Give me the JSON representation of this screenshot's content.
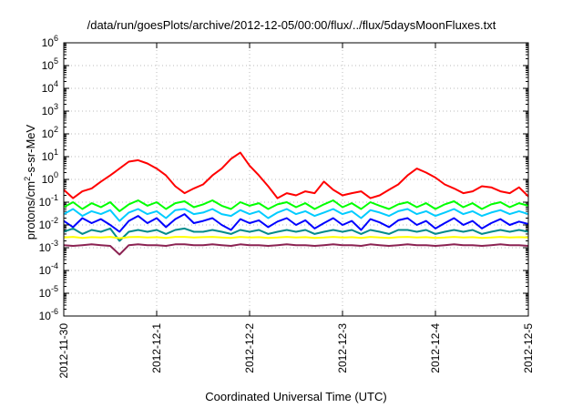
{
  "chart_data": {
    "type": "line",
    "title": "/data/run/goesPlots/archive/2012-12-05/00:00/flux/../flux/5daysMoonFluxes.txt",
    "xlabel": "Coordinated Universal Time (UTC)",
    "ylabel_parts": [
      "protons/cm",
      "2",
      "-s-sr-MeV"
    ],
    "y_scale": "log",
    "ylim": [
      1e-06,
      1000000.0
    ],
    "xlim": [
      "2012-11-30",
      "2012-12-05"
    ],
    "x_ticks": [
      "2012-11-30",
      "2012-12-1",
      "2012-12-2",
      "2012-12-3",
      "2012-12-4",
      "2012-12-5"
    ],
    "y_ticks": [
      {
        "value": 1e-06,
        "base": "10",
        "exp": "-6"
      },
      {
        "value": 1e-05,
        "base": "10",
        "exp": "-5"
      },
      {
        "value": 0.0001,
        "base": "10",
        "exp": "-4"
      },
      {
        "value": 0.001,
        "base": "10",
        "exp": "-3"
      },
      {
        "value": 0.01,
        "base": "10",
        "exp": "-2"
      },
      {
        "value": 0.1,
        "base": "10",
        "exp": "-1"
      },
      {
        "value": 1,
        "base": "10",
        "exp": "0"
      },
      {
        "value": 10,
        "base": "10",
        "exp": "1"
      },
      {
        "value": 100,
        "base": "10",
        "exp": "2"
      },
      {
        "value": 1000,
        "base": "10",
        "exp": "3"
      },
      {
        "value": 10000,
        "base": "10",
        "exp": "4"
      },
      {
        "value": 100000,
        "base": "10",
        "exp": "5"
      },
      {
        "value": 1000000,
        "base": "10",
        "exp": "6"
      }
    ],
    "grid": true,
    "series": [
      {
        "color": "#ff0000",
        "x": [
          0,
          0.1,
          0.2,
          0.3,
          0.4,
          0.5,
          0.6,
          0.7,
          0.8,
          0.9,
          1.0,
          1.1,
          1.2,
          1.3,
          1.4,
          1.5,
          1.6,
          1.7,
          1.8,
          1.9,
          2.0,
          2.1,
          2.2,
          2.3,
          2.4,
          2.5,
          2.6,
          2.7,
          2.8,
          2.9,
          3.0,
          3.1,
          3.2,
          3.3,
          3.4,
          3.5,
          3.6,
          3.7,
          3.8,
          3.9,
          4.0,
          4.1,
          4.2,
          4.3,
          4.4,
          4.5,
          4.6,
          4.7,
          4.8,
          4.9,
          5.0
        ],
        "y": [
          0.35,
          0.15,
          0.3,
          0.4,
          0.8,
          1.5,
          3,
          6,
          7,
          5,
          3,
          1.5,
          0.5,
          0.25,
          0.4,
          0.6,
          1.5,
          3,
          8,
          15,
          4,
          1.5,
          0.5,
          0.15,
          0.25,
          0.2,
          0.3,
          0.25,
          0.8,
          0.35,
          0.2,
          0.25,
          0.3,
          0.15,
          0.2,
          0.35,
          0.6,
          1.5,
          3,
          2,
          1.2,
          0.6,
          0.4,
          0.25,
          0.3,
          0.5,
          0.45,
          0.3,
          0.25,
          0.45,
          0.18
        ]
      },
      {
        "color": "#00ff00",
        "x": [
          0,
          0.1,
          0.2,
          0.3,
          0.4,
          0.5,
          0.6,
          0.7,
          0.8,
          0.9,
          1.0,
          1.1,
          1.2,
          1.3,
          1.4,
          1.5,
          1.6,
          1.7,
          1.8,
          1.9,
          2.0,
          2.1,
          2.2,
          2.3,
          2.4,
          2.5,
          2.6,
          2.7,
          2.8,
          2.9,
          3.0,
          3.1,
          3.2,
          3.3,
          3.4,
          3.5,
          3.6,
          3.7,
          3.8,
          3.9,
          4.0,
          4.1,
          4.2,
          4.3,
          4.4,
          4.5,
          4.6,
          4.7,
          4.8,
          4.9,
          5.0
        ],
        "y": [
          0.06,
          0.1,
          0.05,
          0.09,
          0.06,
          0.1,
          0.04,
          0.08,
          0.12,
          0.07,
          0.1,
          0.05,
          0.09,
          0.11,
          0.06,
          0.08,
          0.12,
          0.07,
          0.05,
          0.1,
          0.07,
          0.09,
          0.05,
          0.08,
          0.1,
          0.06,
          0.09,
          0.05,
          0.08,
          0.12,
          0.06,
          0.09,
          0.05,
          0.1,
          0.07,
          0.05,
          0.08,
          0.1,
          0.06,
          0.09,
          0.05,
          0.08,
          0.11,
          0.06,
          0.09,
          0.05,
          0.08,
          0.1,
          0.06,
          0.09,
          0.07
        ]
      },
      {
        "color": "#00ccff",
        "x": [
          0,
          0.1,
          0.2,
          0.3,
          0.4,
          0.5,
          0.6,
          0.7,
          0.8,
          0.9,
          1.0,
          1.1,
          1.2,
          1.3,
          1.4,
          1.5,
          1.6,
          1.7,
          1.8,
          1.9,
          2.0,
          2.1,
          2.2,
          2.3,
          2.4,
          2.5,
          2.6,
          2.7,
          2.8,
          2.9,
          3.0,
          3.1,
          3.2,
          3.3,
          3.4,
          3.5,
          3.6,
          3.7,
          3.8,
          3.9,
          4.0,
          4.1,
          4.2,
          4.3,
          4.4,
          4.5,
          4.6,
          4.7,
          4.8,
          4.9,
          5.0
        ],
        "y": [
          0.03,
          0.05,
          0.025,
          0.04,
          0.03,
          0.045,
          0.015,
          0.035,
          0.05,
          0.03,
          0.04,
          0.02,
          0.045,
          0.05,
          0.03,
          0.035,
          0.05,
          0.03,
          0.025,
          0.045,
          0.03,
          0.04,
          0.02,
          0.035,
          0.05,
          0.03,
          0.04,
          0.025,
          0.035,
          0.05,
          0.03,
          0.04,
          0.02,
          0.045,
          0.035,
          0.025,
          0.04,
          0.05,
          0.03,
          0.04,
          0.025,
          0.035,
          0.05,
          0.03,
          0.04,
          0.025,
          0.035,
          0.045,
          0.03,
          0.04,
          0.03
        ]
      },
      {
        "color": "#0000ff",
        "x": [
          0,
          0.1,
          0.2,
          0.3,
          0.4,
          0.5,
          0.6,
          0.7,
          0.8,
          0.9,
          1.0,
          1.1,
          1.2,
          1.3,
          1.4,
          1.5,
          1.6,
          1.7,
          1.8,
          1.9,
          2.0,
          2.1,
          2.2,
          2.3,
          2.4,
          2.5,
          2.6,
          2.7,
          2.8,
          2.9,
          3.0,
          3.1,
          3.2,
          3.3,
          3.4,
          3.5,
          3.6,
          3.7,
          3.8,
          3.9,
          4.0,
          4.1,
          4.2,
          4.3,
          4.4,
          4.5,
          4.6,
          4.7,
          4.8,
          4.9,
          5.0
        ],
        "y": [
          0.015,
          0.008,
          0.02,
          0.012,
          0.018,
          0.01,
          0.005,
          0.015,
          0.025,
          0.012,
          0.02,
          0.008,
          0.018,
          0.03,
          0.012,
          0.015,
          0.02,
          0.01,
          0.006,
          0.018,
          0.012,
          0.016,
          0.008,
          0.014,
          0.02,
          0.01,
          0.016,
          0.007,
          0.012,
          0.02,
          0.01,
          0.015,
          0.006,
          0.018,
          0.013,
          0.008,
          0.016,
          0.02,
          0.01,
          0.015,
          0.007,
          0.012,
          0.02,
          0.01,
          0.015,
          0.007,
          0.012,
          0.018,
          0.01,
          0.014,
          0.011
        ]
      },
      {
        "color": "#008b8b",
        "x": [
          0,
          0.1,
          0.2,
          0.3,
          0.4,
          0.5,
          0.6,
          0.7,
          0.8,
          0.9,
          1.0,
          1.1,
          1.2,
          1.3,
          1.4,
          1.5,
          1.6,
          1.7,
          1.8,
          1.9,
          2.0,
          2.1,
          2.2,
          2.3,
          2.4,
          2.5,
          2.6,
          2.7,
          2.8,
          2.9,
          3.0,
          3.1,
          3.2,
          3.3,
          3.4,
          3.5,
          3.6,
          3.7,
          3.8,
          3.9,
          4.0,
          4.1,
          4.2,
          4.3,
          4.4,
          4.5,
          4.6,
          4.7,
          4.8,
          4.9,
          5.0
        ],
        "y": [
          0.005,
          0.007,
          0.004,
          0.006,
          0.005,
          0.007,
          0.002,
          0.005,
          0.006,
          0.005,
          0.006,
          0.004,
          0.006,
          0.007,
          0.005,
          0.005,
          0.006,
          0.005,
          0.004,
          0.006,
          0.005,
          0.006,
          0.004,
          0.005,
          0.006,
          0.005,
          0.006,
          0.004,
          0.005,
          0.006,
          0.005,
          0.006,
          0.004,
          0.006,
          0.005,
          0.004,
          0.006,
          0.006,
          0.005,
          0.006,
          0.004,
          0.005,
          0.006,
          0.005,
          0.006,
          0.004,
          0.005,
          0.006,
          0.005,
          0.006,
          0.005
        ]
      },
      {
        "color": "#ffff00",
        "x": [
          0,
          0.1,
          0.2,
          0.3,
          0.4,
          0.5,
          0.6,
          0.7,
          0.8,
          0.9,
          1.0,
          1.1,
          1.2,
          1.3,
          1.4,
          1.5,
          1.6,
          1.7,
          1.8,
          1.9,
          2.0,
          2.1,
          2.2,
          2.3,
          2.4,
          2.5,
          2.6,
          2.7,
          2.8,
          2.9,
          3.0,
          3.1,
          3.2,
          3.3,
          3.4,
          3.5,
          3.6,
          3.7,
          3.8,
          3.9,
          4.0,
          4.1,
          4.2,
          4.3,
          4.4,
          4.5,
          4.6,
          4.7,
          4.8,
          4.9,
          5.0
        ],
        "y": [
          0.0028,
          0.003,
          0.0027,
          0.0029,
          0.0028,
          0.003,
          0.0026,
          0.0029,
          0.003,
          0.0028,
          0.0029,
          0.0027,
          0.003,
          0.003,
          0.0028,
          0.0029,
          0.003,
          0.0028,
          0.0027,
          0.003,
          0.0028,
          0.0029,
          0.0027,
          0.0028,
          0.003,
          0.0028,
          0.0029,
          0.0027,
          0.0028,
          0.003,
          0.0028,
          0.0029,
          0.0027,
          0.003,
          0.0028,
          0.0027,
          0.0029,
          0.003,
          0.0028,
          0.0029,
          0.0027,
          0.0028,
          0.003,
          0.0028,
          0.0029,
          0.0027,
          0.0028,
          0.003,
          0.0028,
          0.0029,
          0.0028
        ]
      },
      {
        "color": "#8b2252",
        "x": [
          0,
          0.1,
          0.2,
          0.3,
          0.4,
          0.5,
          0.6,
          0.7,
          0.8,
          0.9,
          1.0,
          1.1,
          1.2,
          1.3,
          1.4,
          1.5,
          1.6,
          1.7,
          1.8,
          1.9,
          2.0,
          2.1,
          2.2,
          2.3,
          2.4,
          2.5,
          2.6,
          2.7,
          2.8,
          2.9,
          3.0,
          3.1,
          3.2,
          3.3,
          3.4,
          3.5,
          3.6,
          3.7,
          3.8,
          3.9,
          4.0,
          4.1,
          4.2,
          4.3,
          4.4,
          4.5,
          4.6,
          4.7,
          4.8,
          4.9,
          5.0
        ],
        "y": [
          0.0013,
          0.0012,
          0.0013,
          0.0014,
          0.0013,
          0.0012,
          0.0005,
          0.0013,
          0.0014,
          0.0013,
          0.0013,
          0.0012,
          0.0014,
          0.0014,
          0.0013,
          0.0013,
          0.0014,
          0.0013,
          0.0012,
          0.0014,
          0.0013,
          0.0013,
          0.0012,
          0.0013,
          0.0014,
          0.0013,
          0.0013,
          0.0012,
          0.0013,
          0.0014,
          0.0013,
          0.0013,
          0.0012,
          0.0014,
          0.0013,
          0.0012,
          0.0013,
          0.0014,
          0.0013,
          0.0013,
          0.0012,
          0.0013,
          0.0014,
          0.0013,
          0.0013,
          0.0012,
          0.0013,
          0.0014,
          0.0013,
          0.0013,
          0.0012
        ]
      }
    ]
  }
}
